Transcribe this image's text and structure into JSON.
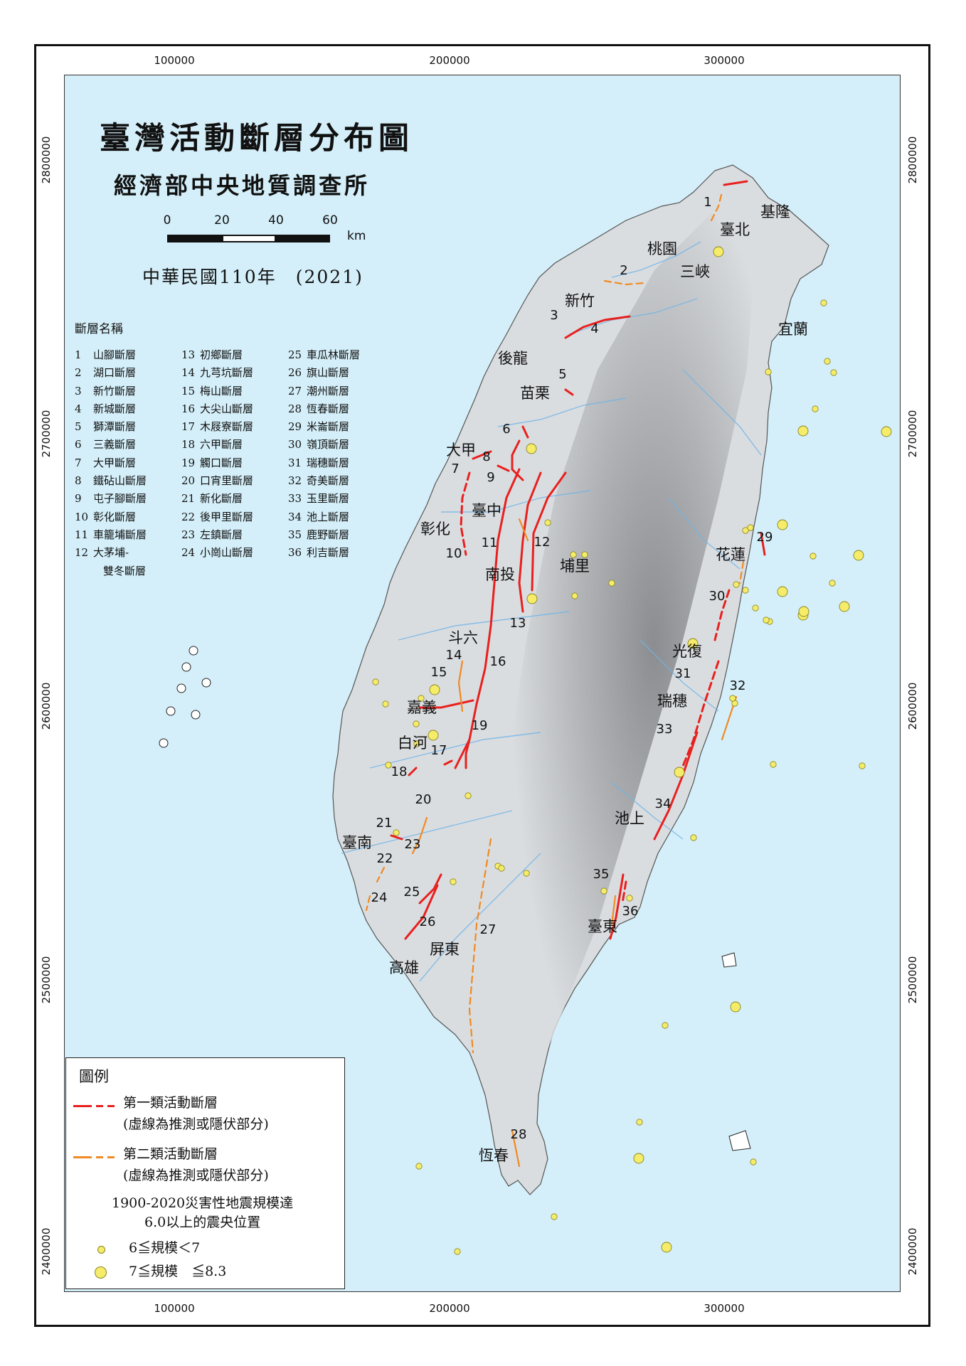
{
  "map": {
    "title": "臺灣活動斷層分布圖",
    "organization": "經濟部中央地質調查所",
    "year": "中華民國110年　(2021)",
    "colors": {
      "sea": "#d4eff9",
      "land": "#dadde0",
      "river": "#6fb4e6",
      "fault_class1": "#e8201e",
      "fault_class2": "#f08a24",
      "quake": "#f5ec6a"
    }
  },
  "scale_bar": {
    "labels": [
      "0",
      "20",
      "40",
      "60"
    ],
    "unit": "km"
  },
  "grid": {
    "x_labels": [
      "100000",
      "200000",
      "300000"
    ],
    "y_labels": [
      "2800000",
      "2700000",
      "2600000",
      "2500000",
      "2400000"
    ]
  },
  "places": [
    "基隆",
    "臺北",
    "桃園",
    "三峽",
    "新竹",
    "宜蘭",
    "後龍",
    "苗栗",
    "大甲",
    "臺中",
    "彰化",
    "南投",
    "埔里",
    "花蓮",
    "斗六",
    "光復",
    "嘉義",
    "瑞穗",
    "白河",
    "池上",
    "臺南",
    "屏東",
    "臺東",
    "高雄",
    "恆春"
  ],
  "fault_list": {
    "title": "斷層名稱",
    "columns": [
      [
        {
          "n": "1",
          "name": "山腳斷層"
        },
        {
          "n": "2",
          "name": "湖口斷層"
        },
        {
          "n": "3",
          "name": "新竹斷層"
        },
        {
          "n": "4",
          "name": "新城斷層"
        },
        {
          "n": "5",
          "name": "獅潭斷層"
        },
        {
          "n": "6",
          "name": "三義斷層"
        },
        {
          "n": "7",
          "name": "大甲斷層"
        },
        {
          "n": "8",
          "name": "鐵砧山斷層"
        },
        {
          "n": "9",
          "name": "屯子腳斷層"
        },
        {
          "n": "10",
          "name": "彰化斷層"
        },
        {
          "n": "11",
          "name": "車籠埔斷層"
        },
        {
          "n": "12",
          "name": "大茅埔-"
        }
      ],
      [
        {
          "n": "13",
          "name": "初鄉斷層"
        },
        {
          "n": "14",
          "name": "九芎坑斷層"
        },
        {
          "n": "15",
          "name": "梅山斷層"
        },
        {
          "n": "16",
          "name": "大尖山斷層"
        },
        {
          "n": "17",
          "name": "木屐寮斷層"
        },
        {
          "n": "18",
          "name": "六甲斷層"
        },
        {
          "n": "19",
          "name": "觸口斷層"
        },
        {
          "n": "20",
          "name": "口宵里斷層"
        },
        {
          "n": "21",
          "name": "新化斷層"
        },
        {
          "n": "22",
          "name": "後甲里斷層"
        },
        {
          "n": "23",
          "name": "左鎮斷層"
        },
        {
          "n": "24",
          "name": "小崗山斷層"
        }
      ],
      [
        {
          "n": "25",
          "name": "車瓜林斷層"
        },
        {
          "n": "26",
          "name": "旗山斷層"
        },
        {
          "n": "27",
          "name": "潮州斷層"
        },
        {
          "n": "28",
          "name": "恆春斷層"
        },
        {
          "n": "29",
          "name": "米崙斷層"
        },
        {
          "n": "30",
          "name": "嶺頂斷層"
        },
        {
          "n": "31",
          "name": "瑞穗斷層"
        },
        {
          "n": "32",
          "name": "奇美斷層"
        },
        {
          "n": "33",
          "name": "玉里斷層"
        },
        {
          "n": "34",
          "name": "池上斷層"
        },
        {
          "n": "35",
          "name": "鹿野斷層"
        },
        {
          "n": "36",
          "name": "利吉斷層"
        }
      ]
    ],
    "continuation": "雙冬斷層"
  },
  "legend": {
    "title": "圖例",
    "class1": "第一類活動斷層",
    "class1_note": "(虛線為推測或隱伏部分)",
    "class2": "第二類活動斷層",
    "class2_note": "(虛線為推測或隱伏部分)",
    "quake_line1": "1900-2020災害性地震規模達",
    "quake_line2": "6.0以上的震央位置",
    "quake_small": "6≦規模＜7",
    "quake_large": "7≦規模　≦8.3"
  }
}
